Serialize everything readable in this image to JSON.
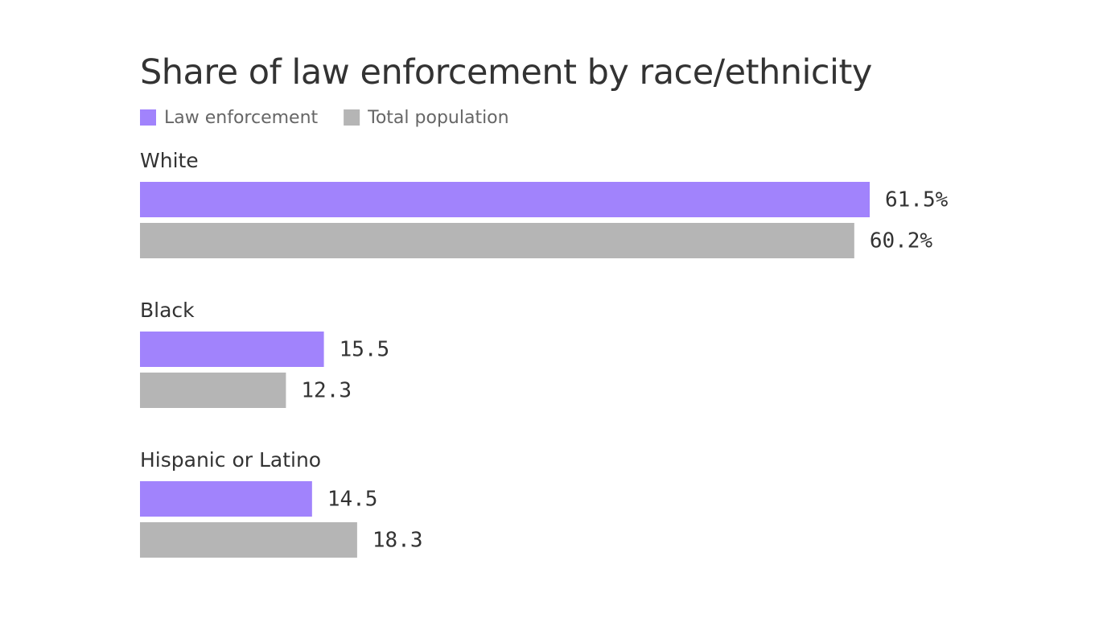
{
  "chart_data": {
    "type": "bar",
    "orientation": "horizontal",
    "title": "Share of law enforcement by race/ethnicity",
    "categories": [
      "White",
      "Black",
      "Hispanic or Latino"
    ],
    "series": [
      {
        "name": "Law enforcement",
        "color": "#a183fc",
        "values": [
          61.5,
          15.5,
          14.5
        ],
        "value_labels": [
          "61.5%",
          "15.5",
          "14.5"
        ]
      },
      {
        "name": "Total population",
        "color": "#b5b5b5",
        "values": [
          60.2,
          12.3,
          18.3
        ],
        "value_labels": [
          "60.2%",
          "12.3",
          "18.3"
        ]
      }
    ]
  }
}
